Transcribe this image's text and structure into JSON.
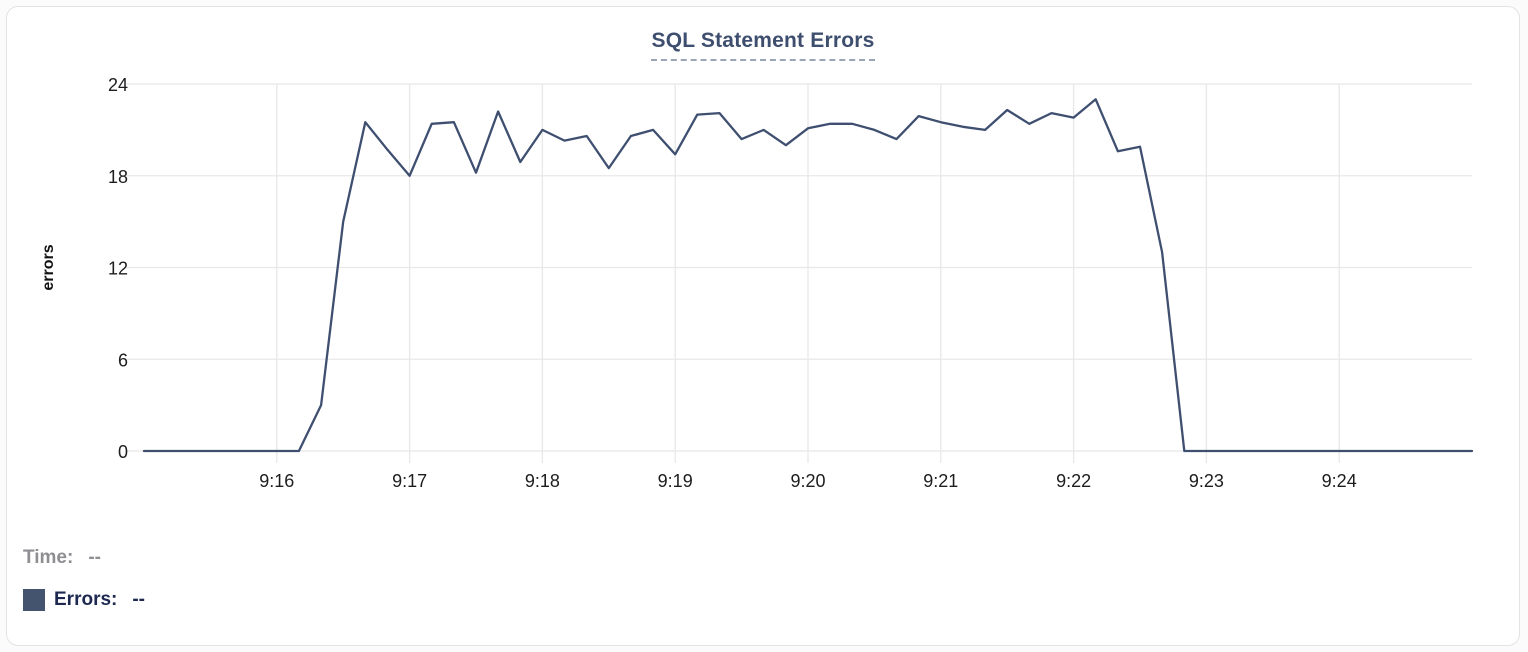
{
  "card": {
    "title": "SQL Statement Errors"
  },
  "tooltip_readout": {
    "time_label": "Time:",
    "time_value": "--",
    "errors_label": "Errors:",
    "errors_value": "--"
  },
  "colors": {
    "line": "#3f4f70",
    "title": "#3e4e6e",
    "title_underline": "#9aa5b8",
    "grid": "#e8e8e8",
    "tick_label": "#1d1d1f",
    "axis_label": "#111111",
    "time_text": "#8e8e93",
    "errors_text": "#1d2950",
    "legend_swatch": "#44536e",
    "card_border": "#e3e3e6",
    "background": "#ffffff"
  },
  "chart_data": {
    "type": "line",
    "title": "SQL Statement Errors",
    "xlabel": "",
    "ylabel": "errors",
    "ylim": [
      0,
      24
    ],
    "y_ticks": [
      0,
      6,
      12,
      18,
      24
    ],
    "grid": true,
    "legend_position": "bottom-left",
    "x_start": "9:15:00",
    "x_end": "9:25:00",
    "x_interval_seconds": 10,
    "x_tick_labels": [
      "9:16",
      "9:17",
      "9:18",
      "9:19",
      "9:20",
      "9:21",
      "9:22",
      "9:23",
      "9:24"
    ],
    "x_tick_indices": [
      6,
      12,
      18,
      24,
      30,
      36,
      42,
      48,
      54
    ],
    "series": [
      {
        "name": "Errors",
        "color": "#3f4f70",
        "values": [
          0,
          0,
          0,
          0,
          0,
          0,
          0,
          0,
          3,
          15,
          21.5,
          19.7,
          18,
          21.4,
          21.5,
          18.2,
          22.2,
          18.9,
          21,
          20.3,
          20.6,
          18.5,
          20.6,
          21,
          19.4,
          22,
          22.1,
          20.4,
          21,
          20,
          21.1,
          21.4,
          21.4,
          21,
          20.4,
          21.9,
          21.5,
          21.2,
          21,
          22.3,
          21.4,
          22.1,
          21.8,
          23,
          19.6,
          19.9,
          13,
          0,
          0,
          0,
          0,
          0,
          0,
          0,
          0,
          0,
          0,
          0,
          0,
          0,
          0
        ]
      }
    ]
  }
}
